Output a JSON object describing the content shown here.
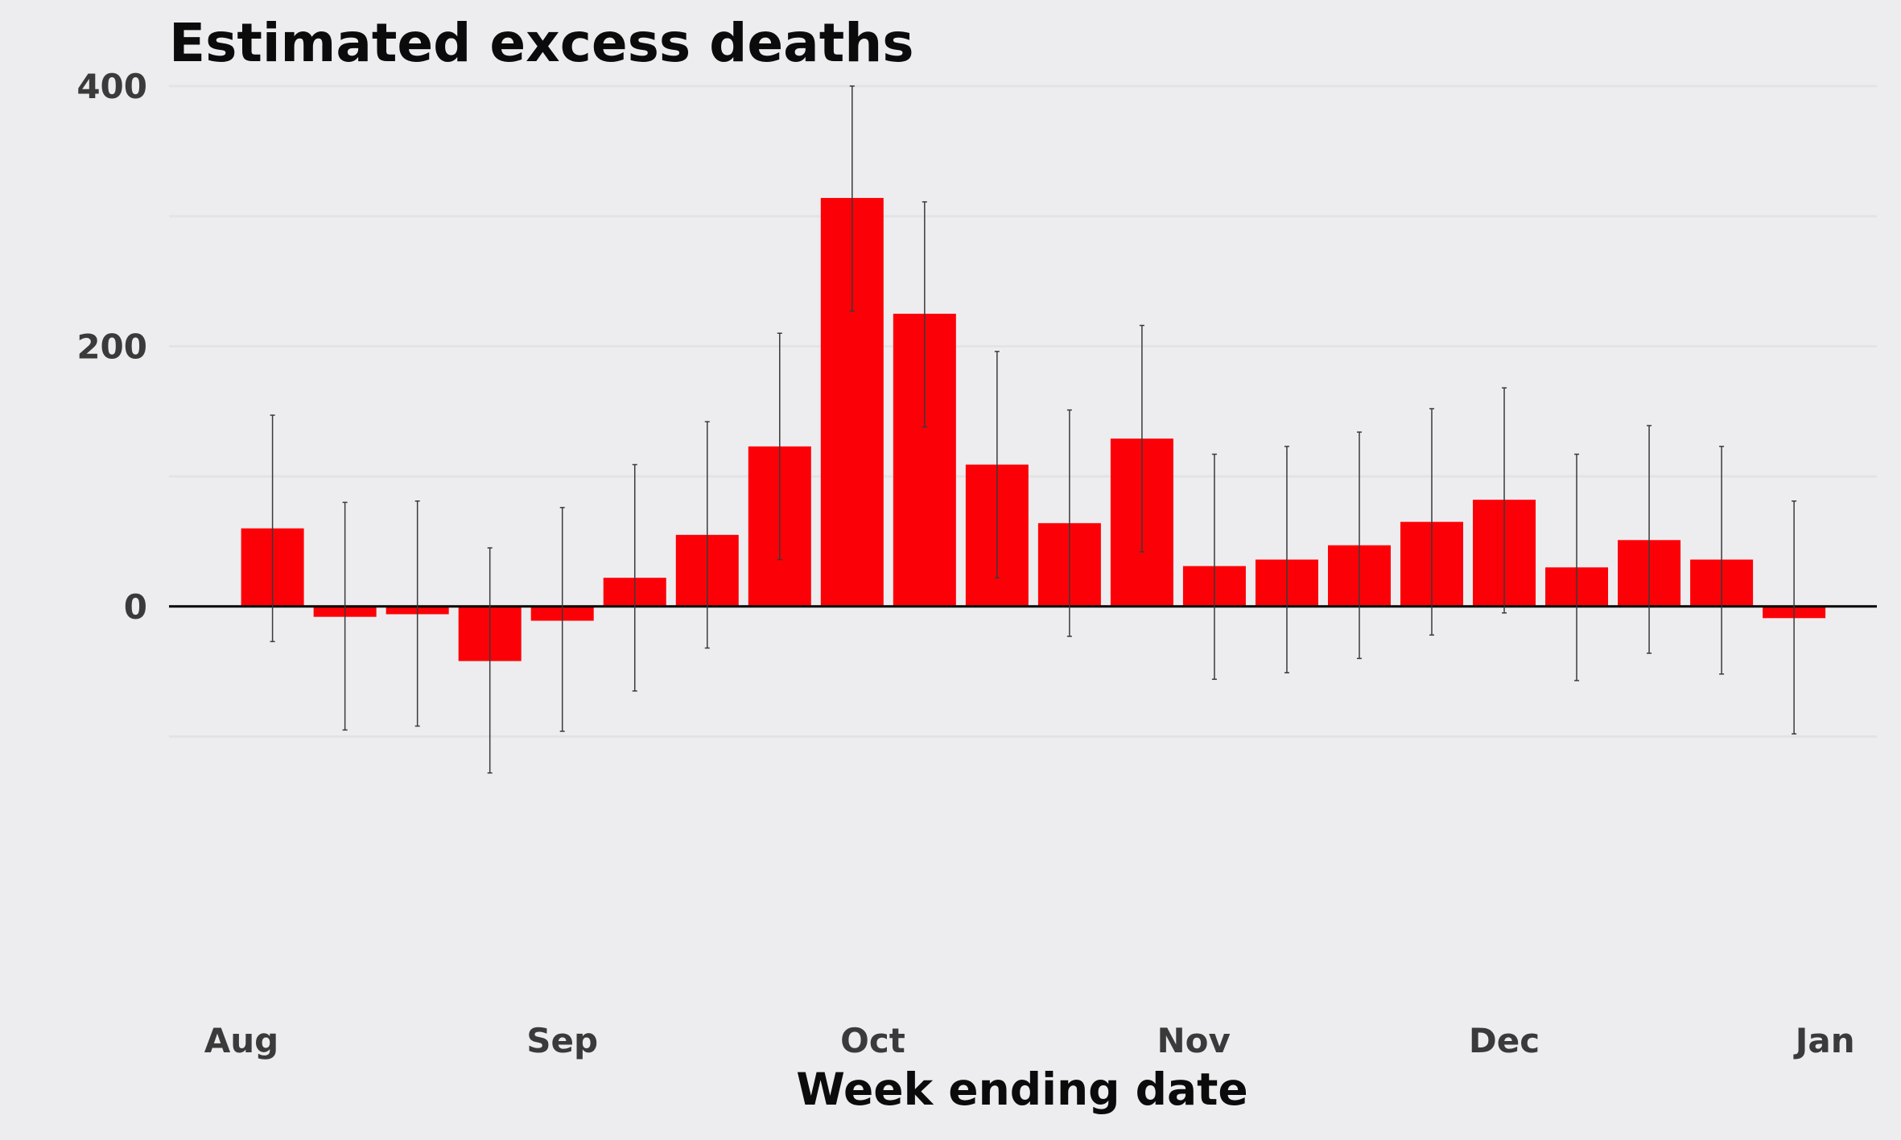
{
  "chart_data": {
    "type": "bar",
    "title": "Estimated excess deaths",
    "xlabel": "Week ending date",
    "ylabel": "",
    "ylim": [
      -310,
      400
    ],
    "y_ticks": [
      {
        "value": 0,
        "label": "0"
      },
      {
        "value": 200,
        "label": "200"
      },
      {
        "value": 400,
        "label": "400"
      }
    ],
    "y_gridlines": [
      -100,
      0,
      100,
      200,
      300,
      400
    ],
    "x_range": [
      "2020-07-25",
      "2021-01-06"
    ],
    "x_ticks": [
      {
        "date": "2020-08-01",
        "label": "Aug"
      },
      {
        "date": "2020-09-01",
        "label": "Sep"
      },
      {
        "date": "2020-10-01",
        "label": "Oct"
      },
      {
        "date": "2020-11-01",
        "label": "Nov"
      },
      {
        "date": "2020-12-01",
        "label": "Dec"
      },
      {
        "date": "2021-01-01",
        "label": "Jan"
      }
    ],
    "grid": true,
    "colors": {
      "bar": "#fc0007",
      "error_bar": "#3a3a3a",
      "baseline": "#000000",
      "grid": "#e3e3e5",
      "background": "#ededef"
    },
    "series": [
      {
        "values": [
          {
            "x": "2020-08-04",
            "y": 60,
            "lower": -27,
            "upper": 147
          },
          {
            "x": "2020-08-11",
            "y": -8,
            "lower": -95,
            "upper": 80
          },
          {
            "x": "2020-08-18",
            "y": -6,
            "lower": -92,
            "upper": 81
          },
          {
            "x": "2020-08-25",
            "y": -42,
            "lower": -128,
            "upper": 45
          },
          {
            "x": "2020-09-01",
            "y": -11,
            "lower": -96,
            "upper": 76
          },
          {
            "x": "2020-09-08",
            "y": 22,
            "lower": -65,
            "upper": 109
          },
          {
            "x": "2020-09-15",
            "y": 55,
            "lower": -32,
            "upper": 142
          },
          {
            "x": "2020-09-22",
            "y": 123,
            "lower": 36,
            "upper": 210
          },
          {
            "x": "2020-09-29",
            "y": 314,
            "lower": 227,
            "upper": 400
          },
          {
            "x": "2020-10-06",
            "y": 225,
            "lower": 138,
            "upper": 311
          },
          {
            "x": "2020-10-13",
            "y": 109,
            "lower": 22,
            "upper": 196
          },
          {
            "x": "2020-10-20",
            "y": 64,
            "lower": -23,
            "upper": 151
          },
          {
            "x": "2020-10-27",
            "y": 129,
            "lower": 42,
            "upper": 216
          },
          {
            "x": "2020-11-03",
            "y": 31,
            "lower": -56,
            "upper": 117
          },
          {
            "x": "2020-11-10",
            "y": 36,
            "lower": -51,
            "upper": 123
          },
          {
            "x": "2020-11-17",
            "y": 47,
            "lower": -40,
            "upper": 134
          },
          {
            "x": "2020-11-24",
            "y": 65,
            "lower": -22,
            "upper": 152
          },
          {
            "x": "2020-12-01",
            "y": 82,
            "lower": -5,
            "upper": 168
          },
          {
            "x": "2020-12-08",
            "y": 30,
            "lower": -57,
            "upper": 117
          },
          {
            "x": "2020-12-15",
            "y": 51,
            "lower": -36,
            "upper": 139
          },
          {
            "x": "2020-12-22",
            "y": 36,
            "lower": -52,
            "upper": 123
          },
          {
            "x": "2020-12-29",
            "y": -9,
            "lower": -98,
            "upper": 81
          }
        ]
      }
    ]
  }
}
